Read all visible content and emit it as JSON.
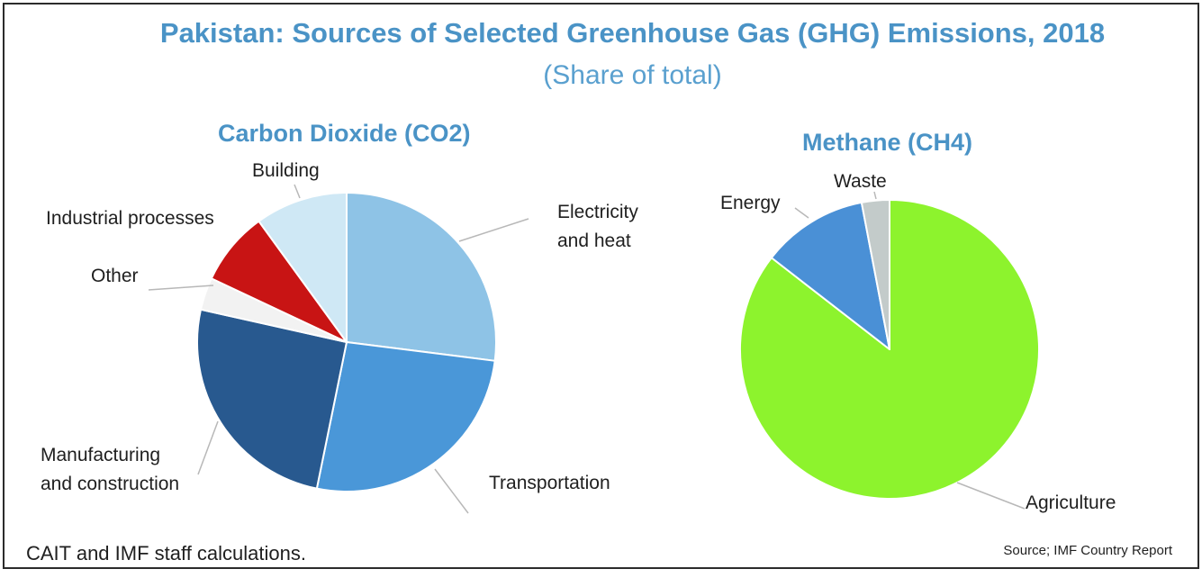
{
  "header": {
    "title": "Pakistan: Sources of Selected Greenhouse Gas (GHG) Emissions, 2018",
    "subtitle": "(Share of total)"
  },
  "footer": {
    "note": "CAIT and IMF staff calculations.",
    "source": "Source; IMF Country Report"
  },
  "chart_data": [
    {
      "type": "pie",
      "title": "Carbon Dioxide (CO2)",
      "unit": "share of total",
      "slices": [
        {
          "label": "Electricity and heat",
          "lines": [
            "Electricity",
            "and heat"
          ],
          "value": 0.27,
          "color": "#8ec3e6"
        },
        {
          "label": "Transportation",
          "lines": [
            "Transportation"
          ],
          "value": 0.262,
          "color": "#4a97d8"
        },
        {
          "label": "Manufacturing and construction",
          "lines": [
            "Manufacturing",
            "and construction"
          ],
          "value": 0.253,
          "color": "#28598f"
        },
        {
          "label": "Other",
          "lines": [
            "Other"
          ],
          "value": 0.035,
          "color": "#f2f2f2"
        },
        {
          "label": "Industrial processes",
          "lines": [
            "Industrial processes"
          ],
          "value": 0.08,
          "color": "#c81414"
        },
        {
          "label": "Building",
          "lines": [
            "Building"
          ],
          "value": 0.1,
          "color": "#cfe8f5"
        }
      ],
      "start_angle_deg": 0,
      "direction": "clockwise"
    },
    {
      "type": "pie",
      "title": "Methane (CH4)",
      "unit": "share of total",
      "slices": [
        {
          "label": "Agriculture",
          "lines": [
            "Agriculture"
          ],
          "value": 0.855,
          "color": "#8df32d"
        },
        {
          "label": "Energy",
          "lines": [
            "Energy"
          ],
          "value": 0.115,
          "color": "#4a90d6"
        },
        {
          "label": "Waste",
          "lines": [
            "Waste"
          ],
          "value": 0.03,
          "color": "#c3cbca"
        }
      ],
      "start_angle_deg": 0,
      "direction": "clockwise"
    }
  ]
}
